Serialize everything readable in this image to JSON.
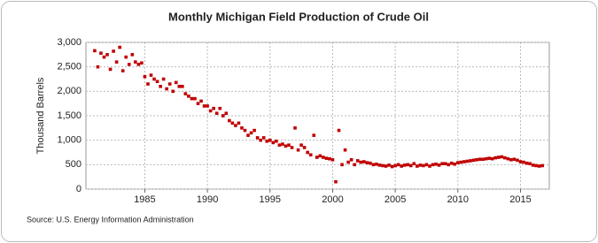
{
  "chart_data": {
    "type": "scatter",
    "title": "Monthly Michigan Field Production of Crude Oil",
    "y_label": "Thousand Barrels",
    "source": "Source: U.S. Energy Information Administration",
    "color": "#c00000",
    "grid": true,
    "xlim": [
      1980.3,
      2017.3
    ],
    "ylim": [
      0,
      3000
    ],
    "xticks": [
      1985,
      1990,
      1995,
      2000,
      2005,
      2010,
      2015
    ],
    "yticks": [
      0,
      500,
      {
        "value": 1000,
        "label": "1,000"
      },
      {
        "value": 1500,
        "label": "1,500"
      },
      {
        "value": 2000,
        "label": "2,000"
      },
      {
        "value": 2500,
        "label": "2,500"
      },
      {
        "value": 3000,
        "label": "3,000"
      }
    ],
    "x": [
      1981,
      1981.25,
      1981.5,
      1981.75,
      1982,
      1982.25,
      1982.5,
      1982.75,
      1983,
      1983.25,
      1983.5,
      1983.75,
      1984,
      1984.25,
      1984.5,
      1984.75,
      1985,
      1985.25,
      1985.5,
      1985.75,
      1986,
      1986.25,
      1986.5,
      1986.75,
      1987,
      1987.25,
      1987.5,
      1987.75,
      1988,
      1988.25,
      1988.5,
      1988.75,
      1989,
      1989.25,
      1989.5,
      1989.75,
      1990,
      1990.25,
      1990.5,
      1990.75,
      1991,
      1991.25,
      1991.5,
      1991.75,
      1992,
      1992.25,
      1992.5,
      1992.75,
      1993,
      1993.25,
      1993.5,
      1993.75,
      1994,
      1994.25,
      1994.5,
      1994.75,
      1995,
      1995.25,
      1995.5,
      1995.75,
      1996,
      1996.25,
      1996.5,
      1996.75,
      1997,
      1997.25,
      1997.5,
      1997.75,
      1998,
      1998.25,
      1998.5,
      1998.75,
      1999,
      1999.25,
      1999.5,
      1999.75,
      2000,
      2000.25,
      2000.5,
      2000.75,
      2001,
      2001.25,
      2001.5,
      2001.75,
      2002,
      2002.25,
      2002.5,
      2002.75,
      2003,
      2003.25,
      2003.5,
      2003.75,
      2004,
      2004.25,
      2004.5,
      2004.75,
      2005,
      2005.25,
      2005.5,
      2005.75,
      2006,
      2006.25,
      2006.5,
      2006.75,
      2007,
      2007.25,
      2007.5,
      2007.75,
      2008,
      2008.25,
      2008.5,
      2008.75,
      2009,
      2009.25,
      2009.5,
      2009.75,
      2010,
      2010.25,
      2010.5,
      2010.75,
      2011,
      2011.25,
      2011.5,
      2011.75,
      2012,
      2012.25,
      2012.5,
      2012.75,
      2013,
      2013.25,
      2013.5,
      2013.75,
      2014,
      2014.25,
      2014.5,
      2014.75,
      2015,
      2015.25,
      2015.5,
      2015.75,
      2016,
      2016.25,
      2016.5,
      2016.75
    ],
    "values": [
      2830,
      2500,
      2780,
      2700,
      2750,
      2450,
      2820,
      2600,
      2900,
      2420,
      2700,
      2550,
      2750,
      2600,
      2550,
      2580,
      2300,
      2150,
      2330,
      2250,
      2200,
      2100,
      2250,
      2050,
      2150,
      2000,
      2180,
      2100,
      2100,
      1950,
      1900,
      1850,
      1850,
      1750,
      1800,
      1700,
      1700,
      1600,
      1650,
      1550,
      1650,
      1500,
      1550,
      1400,
      1350,
      1300,
      1350,
      1250,
      1200,
      1100,
      1150,
      1200,
      1050,
      1000,
      1050,
      980,
      1000,
      950,
      980,
      900,
      920,
      880,
      900,
      850,
      1250,
      800,
      900,
      850,
      750,
      700,
      1100,
      650,
      680,
      650,
      630,
      620,
      600,
      150,
      1200,
      500,
      800,
      550,
      600,
      500,
      580,
      550,
      560,
      540,
      530,
      500,
      510,
      490,
      480,
      470,
      490,
      460,
      480,
      500,
      470,
      490,
      500,
      480,
      520,
      470,
      490,
      480,
      500,
      470,
      500,
      510,
      490,
      520,
      520,
      500,
      530,
      510,
      540,
      550,
      560,
      570,
      580,
      590,
      600,
      610,
      610,
      620,
      630,
      620,
      640,
      650,
      660,
      640,
      620,
      600,
      610,
      590,
      560,
      550,
      530,
      520,
      490,
      480,
      470,
      480
    ]
  }
}
